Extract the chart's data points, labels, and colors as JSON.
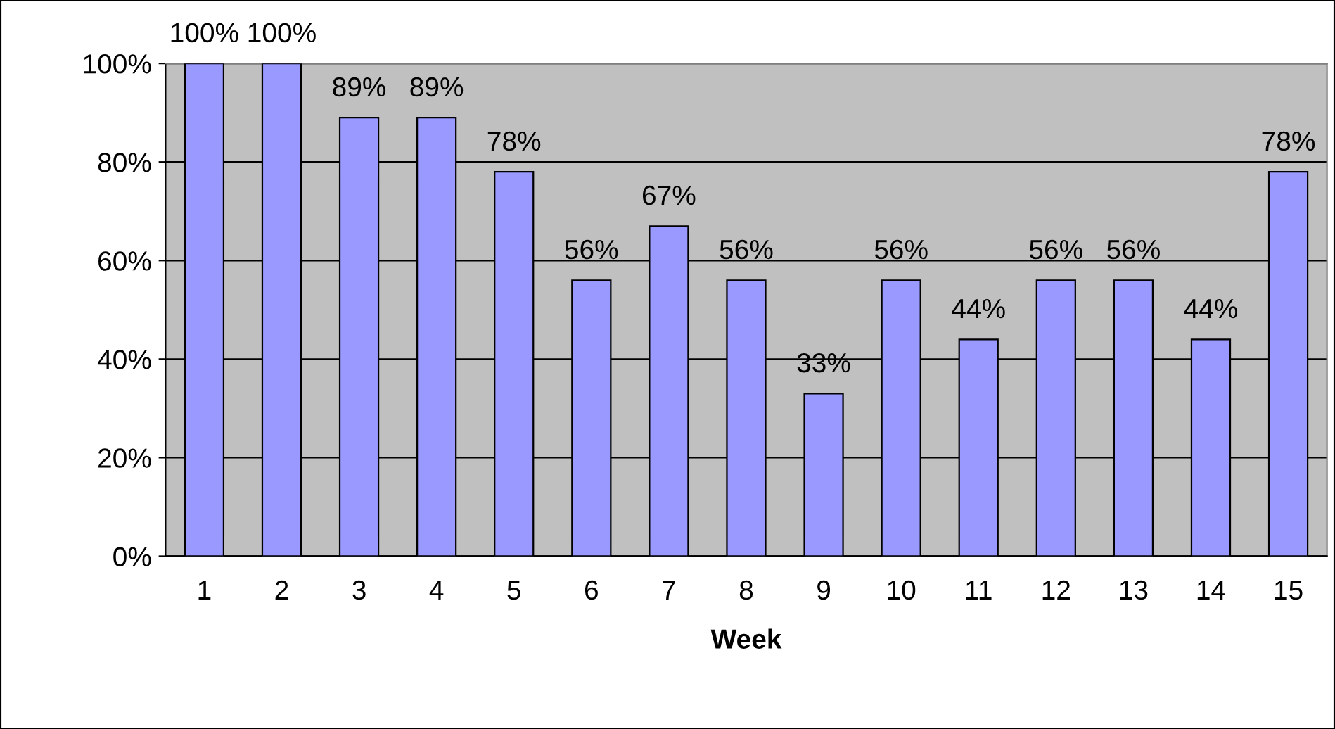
{
  "chart_data": {
    "type": "bar",
    "xlabel": "Week",
    "categories": [
      "1",
      "2",
      "3",
      "4",
      "5",
      "6",
      "7",
      "8",
      "9",
      "10",
      "11",
      "12",
      "13",
      "14",
      "15"
    ],
    "series": [
      {
        "color": "#9999ff",
        "values": [
          100,
          100,
          89,
          89,
          78,
          56,
          67,
          56,
          33,
          56,
          44,
          56,
          56,
          44,
          78
        ],
        "value_labels": [
          "100%",
          "100%",
          "89%",
          "89%",
          "78%",
          "56%",
          "67%",
          "56%",
          "33%",
          "56%",
          "44%",
          "56%",
          "56%",
          "44%",
          "78%"
        ]
      }
    ],
    "ylim": [
      0,
      100
    ],
    "yticks": [
      {
        "value": 0,
        "label": "0%"
      },
      {
        "value": 20,
        "label": "20%"
      },
      {
        "value": 40,
        "label": "40%"
      },
      {
        "value": 60,
        "label": "60%"
      },
      {
        "value": 80,
        "label": "80%"
      },
      {
        "value": 100,
        "label": "100%"
      }
    ],
    "grid": "y",
    "legend": false
  }
}
